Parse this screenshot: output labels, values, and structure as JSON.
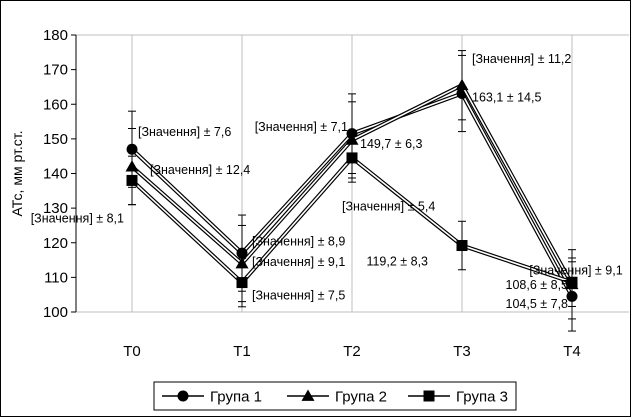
{
  "chart_data": {
    "type": "line",
    "ylabel": "АТс, мм рт.ст.",
    "xlabel": "",
    "ylim": [
      100,
      180
    ],
    "y_ticks": [
      100,
      110,
      120,
      130,
      140,
      150,
      160,
      170,
      180
    ],
    "categories": [
      "T0",
      "T1",
      "T2",
      "T3",
      "T4"
    ],
    "grid": "vertical",
    "legend_position": "bottom",
    "series": [
      {
        "name": "Група 1",
        "marker": "circle",
        "values": [
          147,
          117,
          151.5,
          163.1,
          104.5
        ],
        "errors": [
          11,
          11,
          11.5,
          11,
          10
        ]
      },
      {
        "name": "Група 2",
        "marker": "triangle",
        "values": [
          142,
          114,
          149.7,
          165.5,
          108
        ],
        "errors": [
          11,
          11,
          11,
          10,
          10
        ]
      },
      {
        "name": "Група 3",
        "marker": "square",
        "values": [
          138,
          108.5,
          144.5,
          119.2,
          108.6
        ],
        "errors": [
          7,
          7,
          7,
          7,
          7
        ]
      }
    ],
    "annotations": [
      {
        "text": "[Значення] ± 7,6",
        "ci": 0,
        "y": 152,
        "anchor": "start",
        "dx": 6
      },
      {
        "text": "[Значення] ± 12,4",
        "ci": 0,
        "y": 141,
        "anchor": "start",
        "dx": 18
      },
      {
        "text": "[Значення] ± 8,1",
        "ci": 0,
        "y": 127,
        "anchor": "end",
        "dx": -8
      },
      {
        "text": "[Значення] ± 8,9",
        "ci": 1,
        "y": 120.3,
        "anchor": "start",
        "dx": 10
      },
      {
        "text": "[Значення] ± 9,1",
        "ci": 1,
        "y": 114.5,
        "anchor": "start",
        "dx": 10
      },
      {
        "text": "[Значення] ± 7,5",
        "ci": 1,
        "y": 104.8,
        "anchor": "start",
        "dx": 10
      },
      {
        "text": "[Значення] ± 7,1",
        "ci": 2,
        "y": 153.5,
        "anchor": "end",
        "dx": -4
      },
      {
        "text": "149,7 ± 6,3",
        "ci": 2,
        "y": 148.5,
        "anchor": "start",
        "dx": 8
      },
      {
        "text": "[Значення] ± 5,4",
        "ci": 2,
        "y": 130.5,
        "anchor": "start",
        "dx": -10
      },
      {
        "text": "[Значення] ± 11,2",
        "ci": 3,
        "y": 173,
        "anchor": "start",
        "dx": 10
      },
      {
        "text": "163,1 ± 14,5",
        "ci": 3,
        "y": 162,
        "anchor": "start",
        "dx": 10
      },
      {
        "text": "119,2 ± 8,3",
        "ci": 3,
        "y": 114.6,
        "anchor": "end",
        "dx": -34
      },
      {
        "text": "[Значення] ± 9,1",
        "ci": 4,
        "y": 112,
        "anchor": "middle",
        "dx": 4
      },
      {
        "text": "108,6 ± 8,5",
        "ci": 4,
        "y": 107.8,
        "anchor": "end",
        "dx": -4
      },
      {
        "text": "104,5 ± 7,8",
        "ci": 4,
        "y": 102.3,
        "anchor": "end",
        "dx": -4
      }
    ],
    "colors": {
      "line": "#000000",
      "gap": "#ffffff",
      "grid": "#bfbfbf"
    }
  }
}
